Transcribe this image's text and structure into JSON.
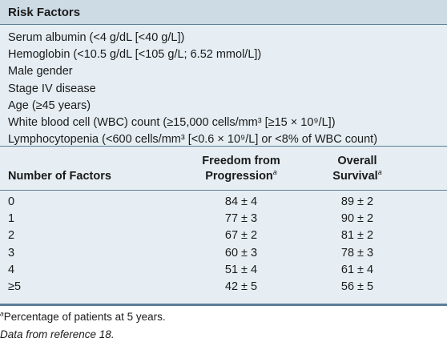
{
  "table": {
    "section_header": "Risk Factors",
    "risk_factors": [
      "Serum albumin (<4 g/dL [<40 g/L])",
      "Hemoglobin (<10.5 g/dL [<105 g/L; 6.52 mmol/L])",
      "Male gender",
      "Stage IV disease",
      "Age (≥45 years)",
      "White blood cell (WBC) count (≥15,000 cells/mm³ [≥15 × 10⁹/L])",
      "Lymphocytopenia (<600 cells/mm³ [<0.6 × 10⁹/L] or <8% of WBC count)"
    ],
    "columns": {
      "factors": "Number of Factors",
      "ffp_line1": "Freedom from",
      "ffp_line2": "Progression",
      "os_line1": "Overall",
      "os_line2": "Survival",
      "footnote_marker": "a"
    },
    "rows": [
      {
        "factors": "0",
        "ffp": "84 ± 4",
        "os": "89 ± 2"
      },
      {
        "factors": "1",
        "ffp": "77 ± 3",
        "os": "90 ± 2"
      },
      {
        "factors": "2",
        "ffp": "67 ± 2",
        "os": "81 ± 2"
      },
      {
        "factors": "3",
        "ffp": "60 ± 3",
        "os": "78 ± 3"
      },
      {
        "factors": "4",
        "ffp": "51 ± 4",
        "os": "61 ± 4"
      },
      {
        "factors": "≥5",
        "ffp": "42 ± 5",
        "os": "56 ± 5"
      }
    ]
  },
  "footnote": {
    "marker": "a",
    "text": "Percentage of patients at 5 years."
  },
  "source": "Data from reference 18."
}
